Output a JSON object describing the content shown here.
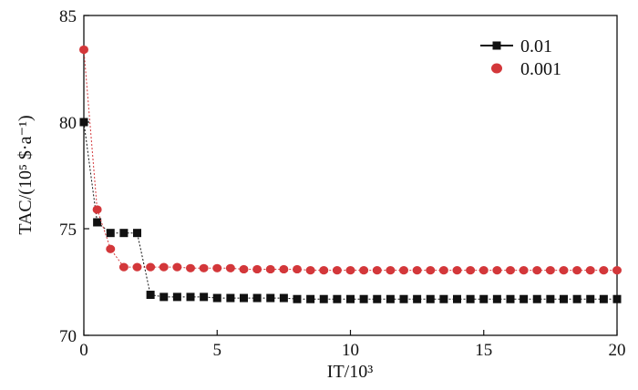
{
  "chart_data": {
    "type": "line",
    "xlabel": "IT/10³",
    "ylabel": "TAC/(10⁵ $·a⁻¹)",
    "xlim": [
      0,
      20
    ],
    "ylim": [
      70,
      85
    ],
    "xticks": [
      0,
      5,
      10,
      15,
      20
    ],
    "yticks": [
      70,
      75,
      80,
      85
    ],
    "xtick_labels": [
      "0",
      "5",
      "10",
      "15",
      "20"
    ],
    "ytick_labels": [
      "70",
      "75",
      "80",
      "85"
    ],
    "grid": false,
    "legend_position": "top-right",
    "series": [
      {
        "name": "0.01",
        "marker": "square",
        "color": "#111111",
        "x": [
          0,
          0.5,
          1,
          1.5,
          2,
          2.5,
          3,
          3.5,
          4,
          4.5,
          5,
          5.5,
          6,
          6.5,
          7,
          7.5,
          8,
          8.5,
          9,
          9.5,
          10,
          10.5,
          11,
          11.5,
          12,
          12.5,
          13,
          13.5,
          14,
          14.5,
          15,
          15.5,
          16,
          16.5,
          17,
          17.5,
          18,
          18.5,
          19,
          19.5,
          20
        ],
        "y": [
          80.0,
          75.3,
          74.8,
          74.8,
          74.8,
          71.9,
          71.8,
          71.8,
          71.8,
          71.8,
          71.75,
          71.75,
          71.75,
          71.75,
          71.75,
          71.75,
          71.7,
          71.7,
          71.7,
          71.7,
          71.7,
          71.7,
          71.7,
          71.7,
          71.7,
          71.7,
          71.7,
          71.7,
          71.7,
          71.7,
          71.7,
          71.7,
          71.7,
          71.7,
          71.7,
          71.7,
          71.7,
          71.7,
          71.7,
          71.7,
          71.7
        ]
      },
      {
        "name": "0.001",
        "marker": "circle",
        "color": "#d3373a",
        "x": [
          0,
          0.5,
          1,
          1.5,
          2,
          2.5,
          3,
          3.5,
          4,
          4.5,
          5,
          5.5,
          6,
          6.5,
          7,
          7.5,
          8,
          8.5,
          9,
          9.5,
          10,
          10.5,
          11,
          11.5,
          12,
          12.5,
          13,
          13.5,
          14,
          14.5,
          15,
          15.5,
          16,
          16.5,
          17,
          17.5,
          18,
          18.5,
          19,
          19.5,
          20
        ],
        "y": [
          83.4,
          75.9,
          74.05,
          73.2,
          73.2,
          73.2,
          73.2,
          73.2,
          73.15,
          73.15,
          73.15,
          73.15,
          73.1,
          73.1,
          73.1,
          73.1,
          73.1,
          73.05,
          73.05,
          73.05,
          73.05,
          73.05,
          73.05,
          73.05,
          73.05,
          73.05,
          73.05,
          73.05,
          73.05,
          73.05,
          73.05,
          73.05,
          73.05,
          73.05,
          73.05,
          73.05,
          73.05,
          73.05,
          73.05,
          73.05,
          73.05
        ]
      }
    ]
  }
}
